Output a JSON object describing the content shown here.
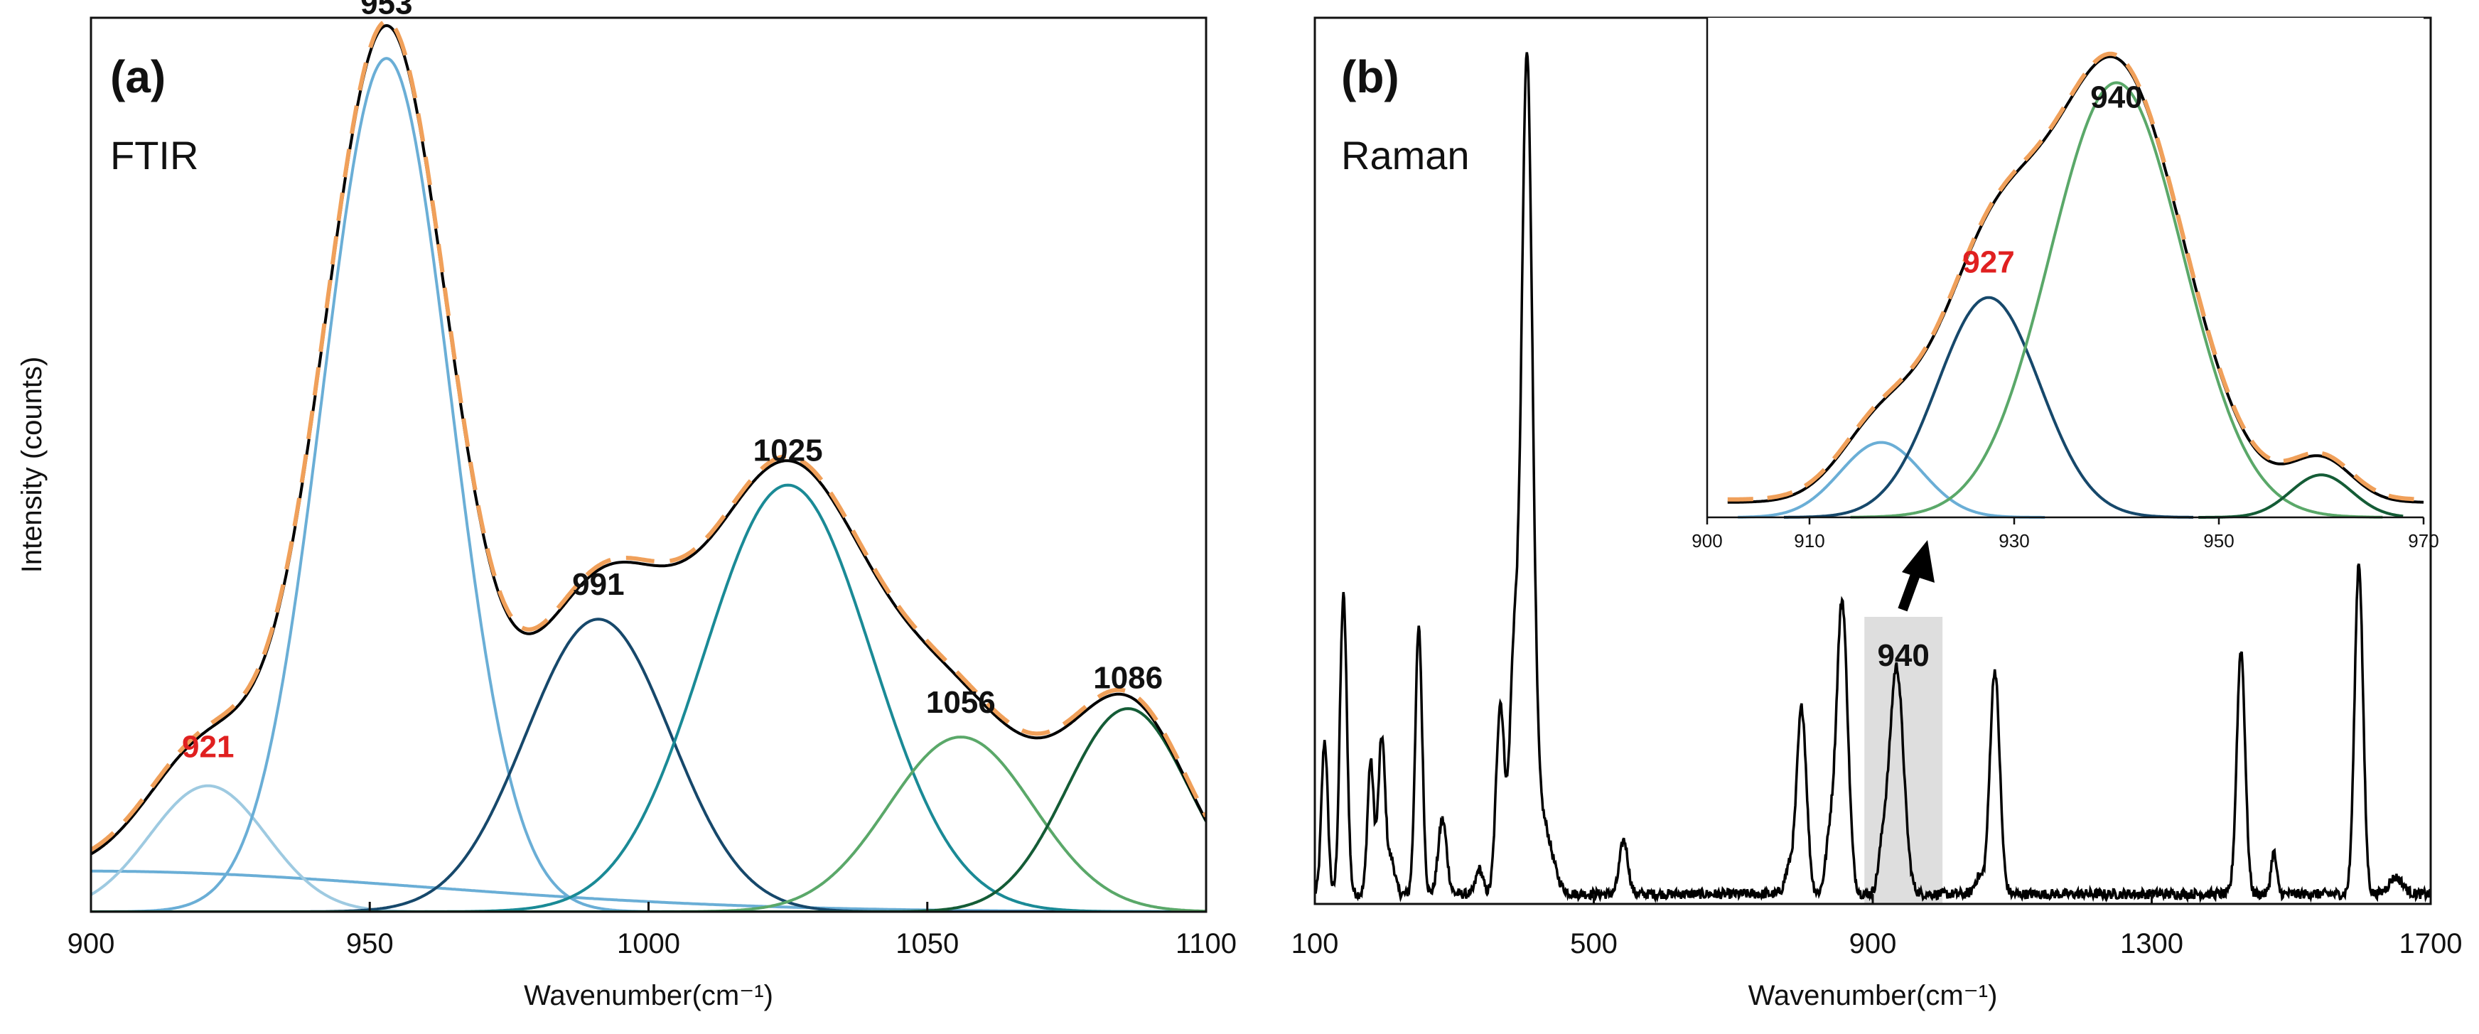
{
  "chart_data": [
    {
      "type": "line",
      "panel_label": "(a)",
      "method_label": "FTIR",
      "xlabel": "Wavenumber(cm⁻¹)",
      "ylabel": "Intensity (counts)",
      "xlim": [
        900,
        1100
      ],
      "ylim": [
        0,
        1.1
      ],
      "xticks": [
        "900",
        "950",
        "1000",
        "1050",
        "1100"
      ],
      "baseline_tail": {
        "center": 900,
        "height": 0.05,
        "sigma": 60
      },
      "series": [
        {
          "name": "Band 921",
          "type": "gaussian",
          "center": 921,
          "height": 0.155,
          "sigma": 10.5,
          "color": "#9ecae1"
        },
        {
          "name": "Band 953",
          "type": "gaussian",
          "center": 953,
          "height": 1.05,
          "sigma": 11.5,
          "color": "#6aaed6"
        },
        {
          "name": "Band 991",
          "type": "gaussian",
          "center": 991,
          "height": 0.36,
          "sigma": 13,
          "color": "#16486b"
        },
        {
          "name": "Band 1025",
          "type": "gaussian",
          "center": 1025,
          "height": 0.525,
          "sigma": 15,
          "color": "#1a8a96"
        },
        {
          "name": "Band 1056",
          "type": "gaussian",
          "center": 1056,
          "height": 0.215,
          "sigma": 13,
          "color": "#5aa869"
        },
        {
          "name": "Band 1086",
          "type": "gaussian",
          "center": 1086,
          "height": 0.25,
          "sigma": 11,
          "color": "#145c36"
        },
        {
          "name": "Measured spectrum",
          "type": "sum",
          "color": "#000000"
        },
        {
          "name": "Cumulative fit",
          "type": "sum",
          "color": "#f0a05a",
          "dashed": true
        }
      ],
      "peak_labels": [
        {
          "text": "921",
          "x": 921,
          "y": 0.19,
          "color": "#e02020"
        },
        {
          "text": "953",
          "x": 953,
          "y": 1.105,
          "color": "#111111"
        },
        {
          "text": "991",
          "x": 991,
          "y": 0.39,
          "color": "#111111"
        },
        {
          "text": "1025",
          "x": 1025,
          "y": 0.555,
          "color": "#111111"
        },
        {
          "text": "1056",
          "x": 1056,
          "y": 0.245,
          "color": "#111111"
        },
        {
          "text": "1086",
          "x": 1086,
          "y": 0.275,
          "color": "#111111"
        }
      ]
    },
    {
      "type": "line",
      "panel_label": "(b)",
      "method_label": "Raman",
      "xlabel": "Wavenumber(cm⁻¹)",
      "xlim": [
        100,
        1700
      ],
      "ylim": [
        0,
        1.07
      ],
      "xticks": [
        "100",
        "500",
        "900",
        "1300",
        "1700"
      ],
      "peaks": [
        {
          "center": 114,
          "height": 0.185,
          "width": 4.5
        },
        {
          "center": 141,
          "height": 0.36,
          "width": 5
        },
        {
          "center": 180,
          "height": 0.16,
          "width": 4.5
        },
        {
          "center": 196,
          "height": 0.19,
          "width": 5
        },
        {
          "center": 210,
          "height": 0.04,
          "width": 5
        },
        {
          "center": 249,
          "height": 0.32,
          "width": 5
        },
        {
          "center": 283,
          "height": 0.09,
          "width": 6
        },
        {
          "center": 336,
          "height": 0.03,
          "width": 5
        },
        {
          "center": 366,
          "height": 0.23,
          "width": 6
        },
        {
          "center": 385,
          "height": 0.26,
          "width": 6
        },
        {
          "center": 404,
          "height": 0.985,
          "width": 8
        },
        {
          "center": 425,
          "height": 0.09,
          "width": 14
        },
        {
          "center": 543,
          "height": 0.065,
          "width": 6
        },
        {
          "center": 780,
          "height": 0.03,
          "width": 6
        },
        {
          "center": 798,
          "height": 0.225,
          "width": 7
        },
        {
          "center": 856,
          "height": 0.355,
          "width": 8
        },
        {
          "center": 838,
          "height": 0.06,
          "width": 6
        },
        {
          "center": 934,
          "height": 0.275,
          "width": 10
        },
        {
          "center": 914,
          "height": 0.045,
          "width": 6
        },
        {
          "center": 1075,
          "height": 0.27,
          "width": 7
        },
        {
          "center": 1052,
          "height": 0.02,
          "width": 6
        },
        {
          "center": 1428,
          "height": 0.295,
          "width": 6
        },
        {
          "center": 1475,
          "height": 0.05,
          "width": 4
        },
        {
          "center": 1597,
          "height": 0.4,
          "width": 6
        },
        {
          "center": 1650,
          "height": 0.02,
          "width": 10
        }
      ],
      "highlight": {
        "x0": 888,
        "x1": 1000,
        "label": "940"
      },
      "inset": {
        "xlim": [
          900,
          970
        ],
        "ylim": [
          0,
          1.0
        ],
        "xticks": [
          "900",
          "910",
          "930",
          "950",
          "970"
        ],
        "series": [
          {
            "name": "Band 917",
            "type": "gaussian",
            "center": 917,
            "height": 0.15,
            "sigma": 4,
            "color": "#6aaed6"
          },
          {
            "name": "Band 927",
            "type": "gaussian",
            "center": 927.5,
            "height": 0.44,
            "sigma": 5,
            "color": "#16486b"
          },
          {
            "name": "Band 940",
            "type": "gaussian",
            "center": 940,
            "height": 0.87,
            "sigma": 6.5,
            "color": "#5aa869"
          },
          {
            "name": "Band 960",
            "type": "gaussian",
            "center": 960,
            "height": 0.085,
            "sigma": 3,
            "color": "#145c36"
          },
          {
            "name": "Measured spectrum",
            "type": "sum",
            "color": "#000000"
          },
          {
            "name": "Cumulative fit",
            "type": "sum",
            "color": "#f0a05a",
            "dashed": true
          }
        ],
        "peak_labels": [
          {
            "text": "927",
            "x": 927.5,
            "y": 0.49,
            "color": "#e02020"
          },
          {
            "text": "940",
            "x": 940,
            "y": 0.82,
            "color": "#111111"
          }
        ]
      }
    }
  ]
}
